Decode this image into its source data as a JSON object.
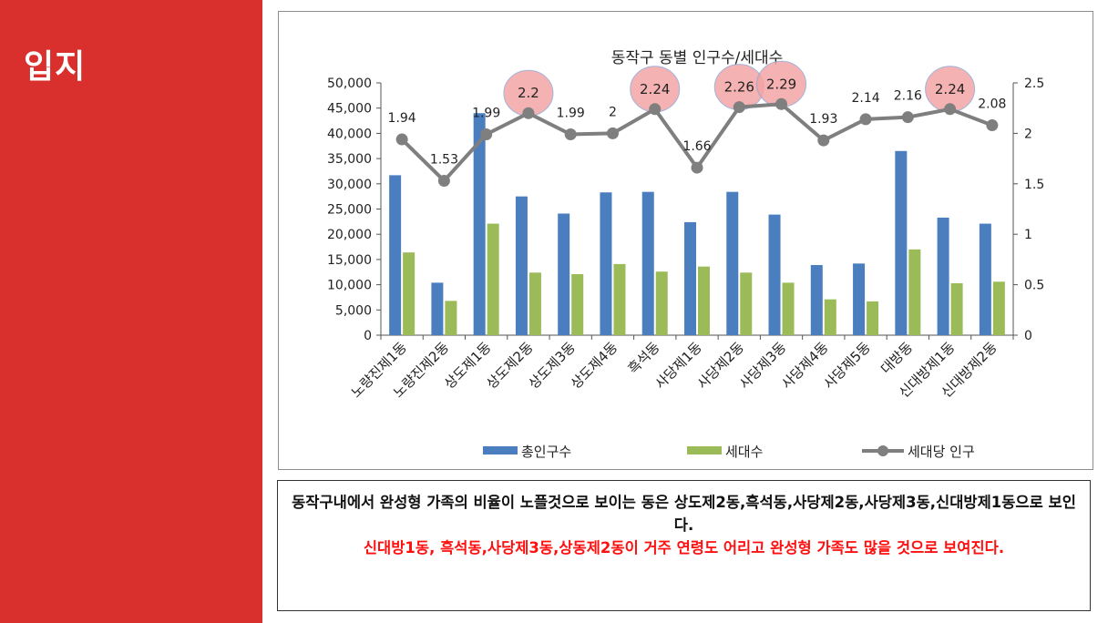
{
  "slide": {
    "title": "입지",
    "accent_color": "#d9302e"
  },
  "note": {
    "text_black": "동작구내에서 완성형 가족의 비율이 노플것으로 보이는 동은 상도제2동,흑석동,사당제2동,사당제3동,신대방제1동으로 보인다.",
    "text_red": "신대방1동, 흑석동,사당제3동,상동제2동이 거주 연령도 어리고 완성형 가족도 많을 것으로 보여진다."
  },
  "chart_data": {
    "type": "bar",
    "title": "동작구 동별 인구수/세대수",
    "categories": [
      "노량진제1동",
      "노량진제2동",
      "상도제1동",
      "상도제2동",
      "상도제3동",
      "상도제4동",
      "흑석동",
      "사당제1동",
      "사당제2동",
      "사당제3동",
      "사당제4동",
      "사당제5동",
      "대방동",
      "신대방제1동",
      "신대방제2동"
    ],
    "series": [
      {
        "name": "총인구수",
        "type": "bar",
        "axis": "left",
        "color": "#4a7ebf",
        "values": [
          31700,
          10400,
          44000,
          27500,
          24100,
          28300,
          28400,
          22400,
          28400,
          23900,
          13900,
          14200,
          36500,
          23300,
          22100
        ]
      },
      {
        "name": "세대수",
        "type": "bar",
        "axis": "left",
        "color": "#9bbb59",
        "values": [
          16400,
          6800,
          22100,
          12400,
          12100,
          14100,
          12600,
          13600,
          12400,
          10400,
          7100,
          6700,
          17000,
          10300,
          10600
        ]
      },
      {
        "name": "세대당 인구",
        "type": "line",
        "axis": "right",
        "color": "#7f7f7f",
        "values": [
          1.94,
          1.53,
          1.99,
          2.2,
          1.99,
          2,
          2.24,
          1.66,
          2.26,
          2.29,
          1.93,
          2.14,
          2.16,
          2.24,
          2.08
        ]
      }
    ],
    "data_labels": [
      "1.94",
      "1.53",
      "1.99",
      "2.2",
      "1.99",
      "2",
      "2.24",
      "1.66",
      "2.26",
      "2.29",
      "1.93",
      "2.14",
      "2.16",
      "2.24",
      "2.08"
    ],
    "highlighted": [
      "상도제2동",
      "흑석동",
      "사당제2동",
      "사당제3동",
      "신대방제1동"
    ],
    "highlight_color": "#f4a5a5",
    "y_left": {
      "min": 0,
      "max": 50000,
      "ticks": [
        "0",
        "5,000",
        "10,000",
        "15,000",
        "20,000",
        "25,000",
        "30,000",
        "35,000",
        "40,000",
        "45,000",
        "50,000"
      ]
    },
    "y_right": {
      "min": 0,
      "max": 2.5,
      "ticks": [
        "0",
        "0.5",
        "1",
        "1.5",
        "2",
        "2.5"
      ]
    },
    "legend_position": "bottom",
    "grid": false
  }
}
